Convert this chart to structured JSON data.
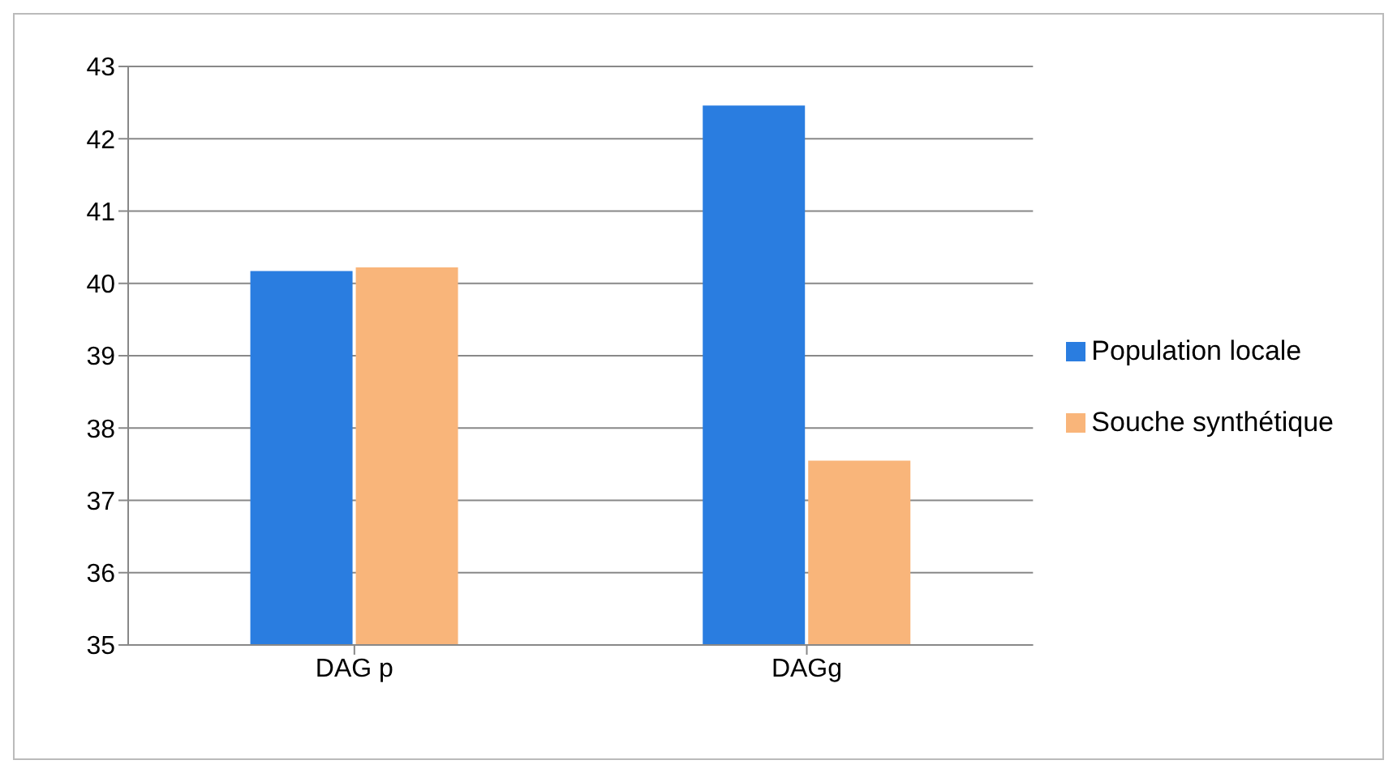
{
  "chart_data": {
    "type": "bar",
    "categories": [
      "DAG p",
      "DAGg"
    ],
    "series": [
      {
        "name": "Population locale",
        "color": "#2a7de0",
        "values": [
          40.17,
          42.46
        ]
      },
      {
        "name": "Souche synthétique",
        "color": "#f9b57a",
        "values": [
          40.22,
          37.55
        ]
      }
    ],
    "ylim": [
      35,
      43
    ],
    "yticks": [
      35,
      36,
      37,
      38,
      39,
      40,
      41,
      42,
      43
    ],
    "grid": "y",
    "legend": "right"
  }
}
